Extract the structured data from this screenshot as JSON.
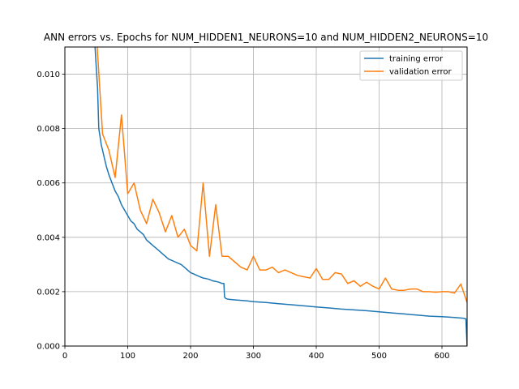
{
  "chart_data": {
    "type": "line",
    "title": "ANN errors vs. Epochs for NUM_HIDDEN1_NEURONS=10 and NUM_HIDDEN2_NEURONS=10",
    "xlabel": "",
    "ylabel": "",
    "xlim": [
      0,
      640
    ],
    "ylim": [
      0,
      0.011
    ],
    "xticks": [
      0,
      100,
      200,
      300,
      400,
      500,
      600
    ],
    "xtick_labels": [
      "0",
      "100",
      "200",
      "300",
      "400",
      "500",
      "600"
    ],
    "yticks": [
      0,
      0.002,
      0.004,
      0.006,
      0.008,
      0.01
    ],
    "ytick_labels": [
      "0.000",
      "0.002",
      "0.004",
      "0.006",
      "0.008",
      "0.010"
    ],
    "grid": true,
    "legend_position": "top-right",
    "series": [
      {
        "name": "training error",
        "color": "#1f77b4",
        "x": [
          45,
          48,
          50,
          52,
          54,
          56,
          58,
          60,
          63,
          66,
          70,
          75,
          80,
          85,
          90,
          95,
          100,
          105,
          110,
          115,
          120,
          125,
          130,
          135,
          140,
          145,
          150,
          155,
          160,
          165,
          170,
          175,
          180,
          185,
          190,
          195,
          200,
          205,
          210,
          215,
          220,
          225,
          230,
          235,
          240,
          245,
          250,
          253,
          254,
          256,
          260,
          270,
          280,
          290,
          300,
          320,
          340,
          360,
          380,
          400,
          420,
          440,
          460,
          480,
          500,
          520,
          540,
          560,
          580,
          600,
          620,
          635,
          638,
          640
        ],
        "y": [
          0.0115,
          0.011,
          0.0102,
          0.0095,
          0.008,
          0.0077,
          0.0074,
          0.0072,
          0.0069,
          0.0066,
          0.0063,
          0.006,
          0.0057,
          0.0055,
          0.0052,
          0.005,
          0.0048,
          0.0046,
          0.0045,
          0.0043,
          0.0042,
          0.0041,
          0.0039,
          0.0038,
          0.0037,
          0.0036,
          0.0035,
          0.0034,
          0.0033,
          0.0032,
          0.00315,
          0.0031,
          0.00305,
          0.003,
          0.0029,
          0.0028,
          0.0027,
          0.00265,
          0.0026,
          0.00255,
          0.0025,
          0.00248,
          0.00245,
          0.0024,
          0.00238,
          0.00235,
          0.0023,
          0.0023,
          0.0018,
          0.00175,
          0.00172,
          0.0017,
          0.00168,
          0.00166,
          0.00163,
          0.0016,
          0.00156,
          0.00152,
          0.00148,
          0.00144,
          0.0014,
          0.00136,
          0.00133,
          0.0013,
          0.00126,
          0.00122,
          0.00118,
          0.00114,
          0.0011,
          0.00108,
          0.00105,
          0.00102,
          0.001,
          0.0
        ]
      },
      {
        "name": "validation error",
        "color": "#ff7f0e",
        "x": [
          50,
          60,
          70,
          80,
          90,
          100,
          110,
          120,
          130,
          140,
          150,
          160,
          170,
          180,
          190,
          200,
          210,
          220,
          230,
          240,
          250,
          260,
          270,
          280,
          290,
          300,
          310,
          320,
          330,
          340,
          350,
          360,
          370,
          380,
          390,
          400,
          410,
          420,
          430,
          440,
          450,
          460,
          470,
          480,
          490,
          500,
          510,
          520,
          530,
          540,
          550,
          560,
          570,
          580,
          590,
          600,
          610,
          620,
          630,
          640
        ],
        "y": [
          0.0115,
          0.0078,
          0.0072,
          0.0062,
          0.0085,
          0.0056,
          0.006,
          0.005,
          0.0045,
          0.0054,
          0.0049,
          0.0042,
          0.0048,
          0.004,
          0.0043,
          0.0037,
          0.0035,
          0.006,
          0.0033,
          0.0052,
          0.0033,
          0.0033,
          0.0031,
          0.0029,
          0.0028,
          0.0033,
          0.0028,
          0.0028,
          0.0029,
          0.0027,
          0.0028,
          0.0027,
          0.0026,
          0.00255,
          0.0025,
          0.00285,
          0.00245,
          0.00245,
          0.0027,
          0.00265,
          0.0023,
          0.0024,
          0.0022,
          0.00235,
          0.0022,
          0.0021,
          0.0025,
          0.0021,
          0.00205,
          0.00205,
          0.0021,
          0.0021,
          0.002,
          0.002,
          0.00198,
          0.002,
          0.002,
          0.00195,
          0.00228,
          0.0016
        ]
      }
    ]
  }
}
